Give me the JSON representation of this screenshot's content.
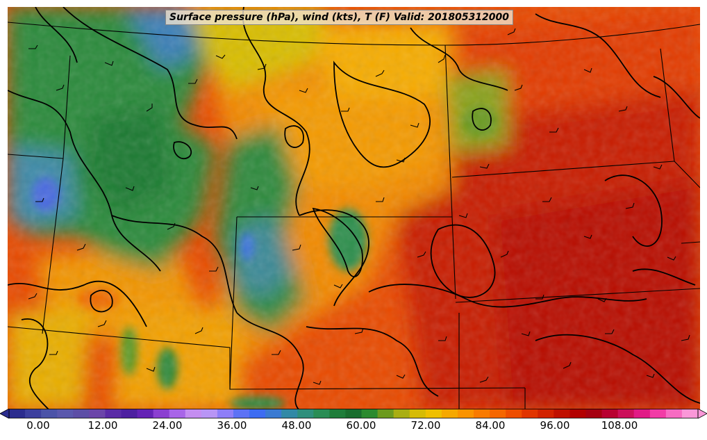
{
  "title": "Surface pressure (hPa), wind (kts), T (F) Valid: 201805312000",
  "colorbar": {
    "tick_labels": [
      "0.00",
      "12.00",
      "24.00",
      "36.00",
      "48.00",
      "60.00",
      "72.00",
      "84.00",
      "96.00",
      "108.00"
    ],
    "min": 0,
    "max": 120,
    "extend": "both",
    "colors": [
      "#2b2c8e",
      "#3c3f9e",
      "#4b53a8",
      "#5a58ad",
      "#5c4ea6",
      "#6b45a9",
      "#5a2ba6",
      "#4d1fa0",
      "#6422b5",
      "#8b3fd1",
      "#a865e8",
      "#c48df0",
      "#b895f5",
      "#8e7ef8",
      "#5d72f5",
      "#3d6cf2",
      "#3a7ad2",
      "#3289a6",
      "#2f8f7c",
      "#2a8d55",
      "#1f7d3a",
      "#196d2e",
      "#2b8a2f",
      "#6c9a1e",
      "#a9ae12",
      "#d6bb05",
      "#efbf00",
      "#f6a800",
      "#fa9300",
      "#f97a00",
      "#f56600",
      "#ee4d00",
      "#e13400",
      "#d22200",
      "#c01000",
      "#b30000",
      "#a60010",
      "#b80030",
      "#cc0f5a",
      "#e11a86",
      "#f23ba6",
      "#f76bc2",
      "#fb97d8"
    ]
  }
}
